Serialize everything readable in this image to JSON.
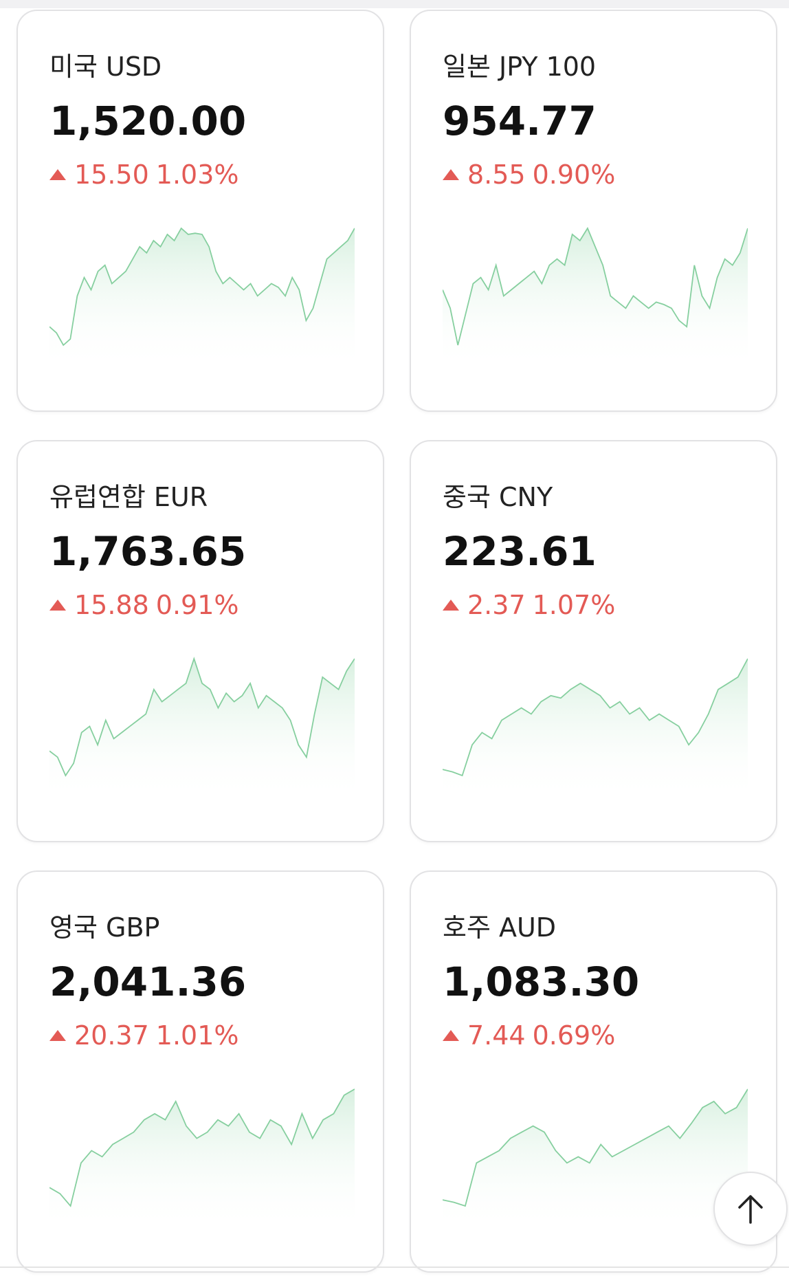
{
  "cards": [
    {
      "title": "미국 USD",
      "value": "1,520.00",
      "change": "15.50",
      "percent": "1.03%",
      "spark": [
        20,
        15,
        5,
        10,
        45,
        60,
        50,
        65,
        70,
        55,
        60,
        65,
        75,
        85,
        80,
        90,
        85,
        95,
        90,
        100,
        95,
        96,
        95,
        85,
        65,
        55,
        60,
        55,
        50,
        55,
        45,
        50,
        55,
        52,
        45,
        60,
        50,
        25,
        35,
        55,
        75,
        80,
        85,
        90,
        100
      ]
    },
    {
      "title": "일본 JPY 100",
      "value": "954.77",
      "change": "8.55",
      "percent": "0.90%",
      "spark": [
        50,
        35,
        5,
        30,
        55,
        60,
        50,
        70,
        45,
        50,
        55,
        60,
        65,
        55,
        70,
        75,
        70,
        95,
        90,
        100,
        85,
        70,
        45,
        40,
        35,
        45,
        40,
        35,
        40,
        38,
        35,
        25,
        20,
        70,
        45,
        35,
        60,
        75,
        70,
        80,
        100
      ]
    },
    {
      "title": "유럽연합 EUR",
      "value": "1,763.65",
      "change": "15.88",
      "percent": "0.91%",
      "spark": [
        25,
        20,
        5,
        15,
        40,
        45,
        30,
        50,
        35,
        40,
        45,
        50,
        55,
        75,
        65,
        70,
        75,
        80,
        100,
        80,
        75,
        60,
        72,
        65,
        70,
        80,
        60,
        70,
        65,
        60,
        50,
        30,
        20,
        55,
        85,
        80,
        75,
        90,
        100
      ]
    },
    {
      "title": "중국 CNY",
      "value": "223.61",
      "change": "2.37",
      "percent": "1.07%",
      "spark": [
        10,
        8,
        5,
        30,
        40,
        35,
        50,
        55,
        60,
        55,
        65,
        70,
        68,
        75,
        80,
        75,
        70,
        60,
        65,
        55,
        60,
        50,
        55,
        50,
        45,
        30,
        40,
        55,
        75,
        80,
        85,
        100
      ]
    },
    {
      "title": "영국 GBP",
      "value": "2,041.36",
      "change": "20.37",
      "percent": "1.01%",
      "spark": [
        20,
        15,
        5,
        40,
        50,
        45,
        55,
        60,
        65,
        75,
        80,
        75,
        90,
        70,
        60,
        65,
        75,
        70,
        80,
        65,
        60,
        75,
        70,
        55,
        80,
        60,
        75,
        80,
        95,
        100
      ]
    },
    {
      "title": "호주 AUD",
      "value": "1,083.30",
      "change": "7.44",
      "percent": "0.69%",
      "spark": [
        10,
        8,
        5,
        40,
        45,
        50,
        60,
        65,
        70,
        65,
        50,
        40,
        45,
        40,
        55,
        45,
        50,
        55,
        60,
        65,
        70,
        60,
        72,
        85,
        90,
        80,
        85,
        100
      ]
    }
  ]
}
